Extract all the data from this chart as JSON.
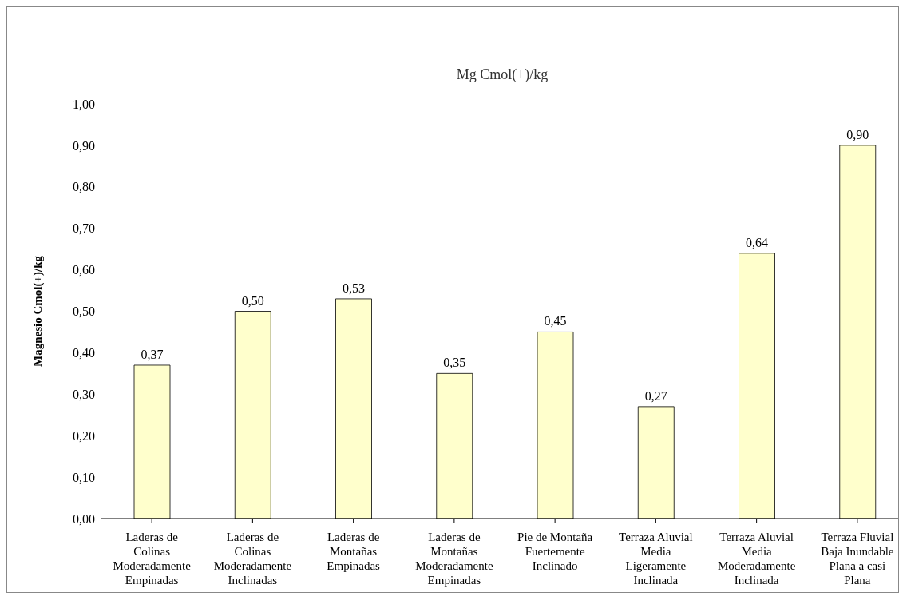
{
  "chart_data": {
    "type": "bar",
    "title": "Mg Cmol(+)/kg",
    "ylabel": "Magnesio Cmol(+)/kg",
    "categories": [
      "Laderas de Colinas Moderadamente Empinadas",
      "Laderas de Colinas Moderadamente Inclinadas",
      "Laderas de Montañas Empinadas",
      "Laderas de Montañas Moderadamente Empinadas",
      "Pie de Montaña Fuertemente Inclinado",
      "Terraza Aluvial Media Ligeramente Inclinada",
      "Terraza Aluvial Media Moderadamente Inclinada",
      "Terraza Fluvial Baja Inundable Plana a casi Plana"
    ],
    "values": [
      0.37,
      0.5,
      0.53,
      0.35,
      0.45,
      0.27,
      0.64,
      0.9
    ],
    "value_labels": [
      "0,37",
      "0,50",
      "0,53",
      "0,35",
      "0,45",
      "0,27",
      "0,64",
      "0,90"
    ],
    "color": "#ffffcc",
    "ylim": [
      0,
      1
    ],
    "yticks": [
      {
        "value": 0,
        "label": "0,00"
      },
      {
        "value": 0.1,
        "label": "0,10"
      },
      {
        "value": 0.2,
        "label": "0,20"
      },
      {
        "value": 0.3,
        "label": "0,30"
      },
      {
        "value": 0.4,
        "label": "0,40"
      },
      {
        "value": 0.5,
        "label": "0,50"
      },
      {
        "value": 0.6,
        "label": "0,60"
      },
      {
        "value": 0.7,
        "label": "0,70"
      },
      {
        "value": 0.8,
        "label": "0,80"
      },
      {
        "value": 0.9,
        "label": "0,90"
      },
      {
        "value": 1,
        "label": "1,00"
      }
    ],
    "grid": false,
    "legend": false
  }
}
